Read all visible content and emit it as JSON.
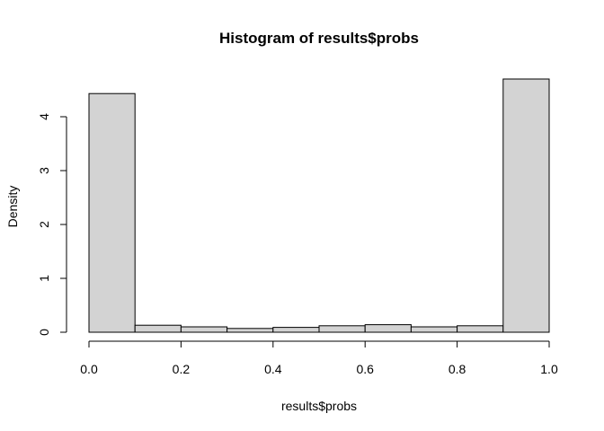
{
  "chart_data": {
    "type": "bar",
    "title": "Histogram of results$probs",
    "xlabel": "results$probs",
    "ylabel": "Density",
    "bins": [
      {
        "from": 0.0,
        "to": 0.1,
        "density": 4.43
      },
      {
        "from": 0.1,
        "to": 0.2,
        "density": 0.13
      },
      {
        "from": 0.2,
        "to": 0.3,
        "density": 0.1
      },
      {
        "from": 0.3,
        "to": 0.4,
        "density": 0.07
      },
      {
        "from": 0.4,
        "to": 0.5,
        "density": 0.09
      },
      {
        "from": 0.5,
        "to": 0.6,
        "density": 0.12
      },
      {
        "from": 0.6,
        "to": 0.7,
        "density": 0.14
      },
      {
        "from": 0.7,
        "to": 0.8,
        "density": 0.1
      },
      {
        "from": 0.8,
        "to": 0.9,
        "density": 0.12
      },
      {
        "from": 0.9,
        "to": 1.0,
        "density": 4.7
      }
    ],
    "xlim": [
      0.0,
      1.0
    ],
    "ylim": [
      0,
      4.7
    ],
    "x_ticks": [
      "0.0",
      "0.2",
      "0.4",
      "0.6",
      "0.8",
      "1.0"
    ],
    "y_ticks": [
      "0",
      "1",
      "2",
      "3",
      "4"
    ],
    "bar_color": "#d3d3d3",
    "grid": false,
    "legend": "none"
  }
}
